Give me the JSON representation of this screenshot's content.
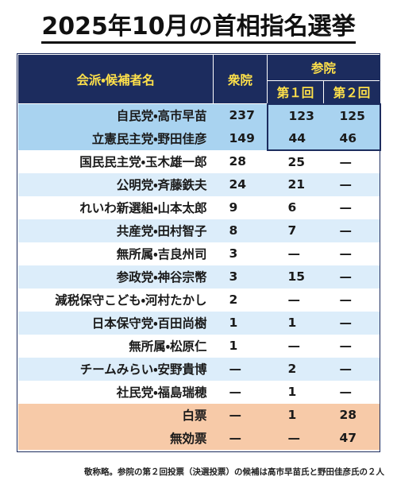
{
  "title": "2025年10月の首相指名選挙",
  "table": {
    "header": {
      "name": "会派・候補者名",
      "lower": "衆院",
      "upper": "参院",
      "round1": "第１回",
      "round2": "第２回"
    },
    "rows": [
      [
        "自民党・高市早苗",
        237,
        123,
        125
      ],
      [
        "立憲民主党・野田佳彦",
        149,
        44,
        46
      ],
      [
        "国民民主党・玉木雄一郎",
        28,
        25,
        "—"
      ],
      [
        "公明党・斉藤鉄夫",
        24,
        21,
        "—"
      ],
      [
        "れいわ新選組・山本太郎",
        9,
        6,
        "—"
      ],
      [
        "共産党・田村智子",
        8,
        7,
        "—"
      ],
      [
        "無所属・吉良州司",
        3,
        "—",
        "—"
      ],
      [
        "参政党・神谷宗幣",
        3,
        15,
        "—"
      ],
      [
        "減税保守こども・河村たかし",
        2,
        "—",
        "—"
      ],
      [
        "日本保守党・百田尚樹",
        1,
        1,
        "—"
      ],
      [
        "無所属・松原仁",
        1,
        "—",
        "—"
      ],
      [
        "チームみらい・安野貴博",
        "—",
        2,
        "—"
      ],
      [
        "社民党・福島瑞穂",
        "—",
        1,
        "—"
      ],
      [
        "白票",
        "—",
        1,
        28
      ],
      [
        "無効票",
        "—",
        "—",
        47
      ]
    ]
  },
  "footnote": "敬称略。参院の第２回投票（決選投票）の候補は高市早苗氏と野田佳彦氏の２人"
}
